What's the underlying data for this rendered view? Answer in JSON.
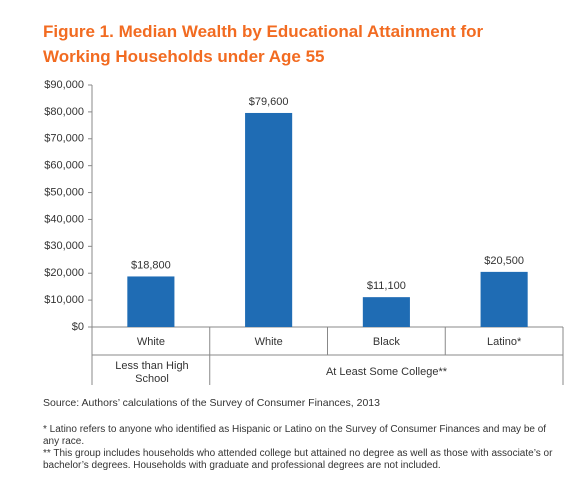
{
  "chart_data": {
    "type": "bar",
    "title": [
      "Figure 1. Median Wealth by Educational Attainment for",
      "Working Households under Age 55"
    ],
    "categories": [
      "White",
      "White",
      "Black",
      "Latino*"
    ],
    "group_labels": [
      "Less than High School",
      "At Least Some College**"
    ],
    "values": [
      18800,
      79600,
      11100,
      20500
    ],
    "value_labels": [
      "$18,800",
      "$79,600",
      "$11,100",
      "$20,500"
    ],
    "color": "#1f6cb4",
    "ylim": [
      0,
      90000
    ],
    "yticks": [
      {
        "value": 0,
        "label": "$0"
      },
      {
        "value": 10000,
        "label": "$10,000"
      },
      {
        "value": 20000,
        "label": "$20,000"
      },
      {
        "value": 30000,
        "label": "$30,000"
      },
      {
        "value": 40000,
        "label": "$40,000"
      },
      {
        "value": 50000,
        "label": "$50,000"
      },
      {
        "value": 60000,
        "label": "$60,000"
      },
      {
        "value": 70000,
        "label": "$70,000"
      },
      {
        "value": 80000,
        "label": "$80,000"
      },
      {
        "value": 90000,
        "label": "$90,000"
      }
    ],
    "source": "Source: Authors’ calculations of the Survey of Consumer Finances, 2013",
    "notes": [
      "* Latino refers to anyone who identified as Hispanic or Latino on the Survey of Consumer Finances and may be of any race.",
      "** This group includes households who attended college but attained no degree as well as those with associate’s or bachelor’s degrees. Households with graduate and professional degrees are not included."
    ]
  }
}
